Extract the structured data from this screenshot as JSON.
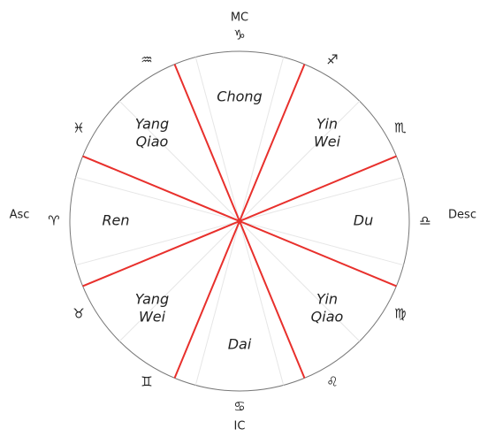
{
  "axes": {
    "top": "MC",
    "right": "Desc",
    "bottom": "IC",
    "left": "Asc"
  },
  "signs": [
    "♑",
    "♐",
    "♏",
    "♎",
    "♍",
    "♌",
    "♋",
    "♊",
    "♉",
    "♈",
    "♓",
    "♒"
  ],
  "sectors": [
    {
      "lines": [
        "Chong"
      ]
    },
    {
      "lines": [
        "Yin",
        "Wei"
      ]
    },
    {
      "lines": [
        "Du"
      ]
    },
    {
      "lines": [
        "Yin",
        "Qiao"
      ]
    },
    {
      "lines": [
        "Dai"
      ]
    },
    {
      "lines": [
        "Yang",
        "Wei"
      ]
    },
    {
      "lines": [
        "Ren"
      ]
    },
    {
      "lines": [
        "Yang",
        "Qiao"
      ]
    }
  ]
}
